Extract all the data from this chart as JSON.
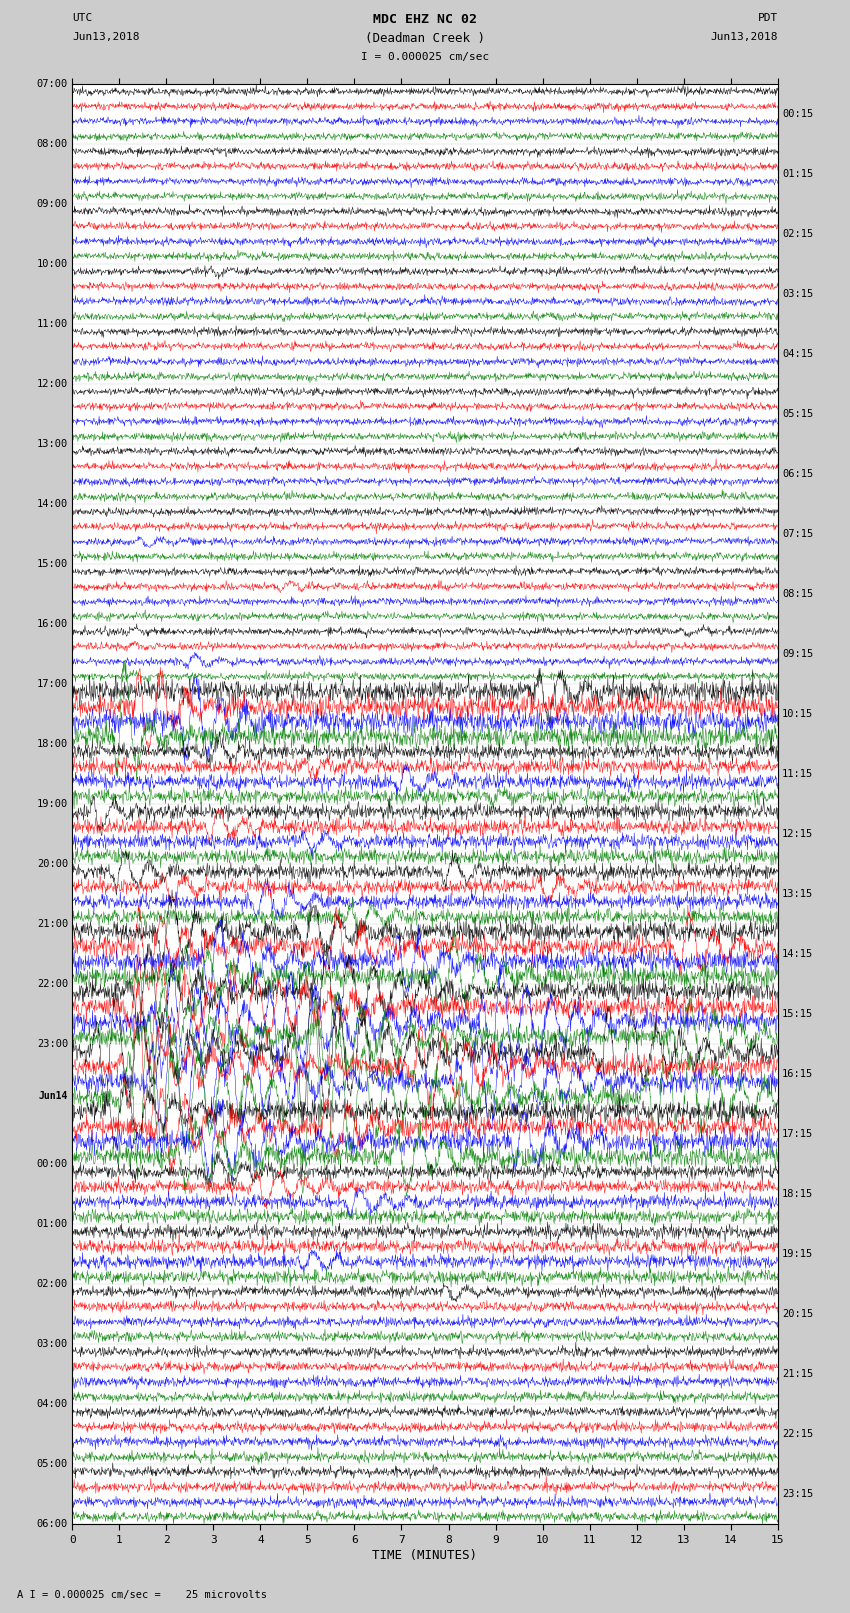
{
  "title_line1": "MDC EHZ NC 02",
  "title_line2": "(Deadman Creek )",
  "title_line3": "I = 0.000025 cm/sec",
  "label_utc": "UTC",
  "label_pdt": "PDT",
  "date_left": "Jun13,2018",
  "date_right": "Jun13,2018",
  "xlabel": "TIME (MINUTES)",
  "footer": "A I = 0.000025 cm/sec =    25 microvolts",
  "left_times": [
    "07:00",
    "08:00",
    "09:00",
    "10:00",
    "11:00",
    "12:00",
    "13:00",
    "14:00",
    "15:00",
    "16:00",
    "17:00",
    "18:00",
    "19:00",
    "20:00",
    "21:00",
    "22:00",
    "23:00",
    "Jun14",
    "00:00",
    "01:00",
    "02:00",
    "03:00",
    "04:00",
    "05:00",
    "06:00"
  ],
  "right_times": [
    "00:15",
    "01:15",
    "02:15",
    "03:15",
    "04:15",
    "05:15",
    "06:15",
    "07:15",
    "08:15",
    "09:15",
    "10:15",
    "11:15",
    "12:15",
    "13:15",
    "14:15",
    "15:15",
    "16:15",
    "17:15",
    "18:15",
    "19:15",
    "20:15",
    "21:15",
    "22:15",
    "23:15"
  ],
  "n_hours": 24,
  "n_traces_per_hour": 4,
  "trace_colors": [
    "black",
    "red",
    "blue",
    "green"
  ],
  "bg_color": "#cccccc",
  "plot_bg": "#ffffff",
  "xmin": 0,
  "xmax": 15,
  "xticks": [
    0,
    1,
    2,
    3,
    4,
    5,
    6,
    7,
    8,
    9,
    10,
    11,
    12,
    13,
    14,
    15
  ],
  "noise_scale": 0.12,
  "seed": 12345
}
